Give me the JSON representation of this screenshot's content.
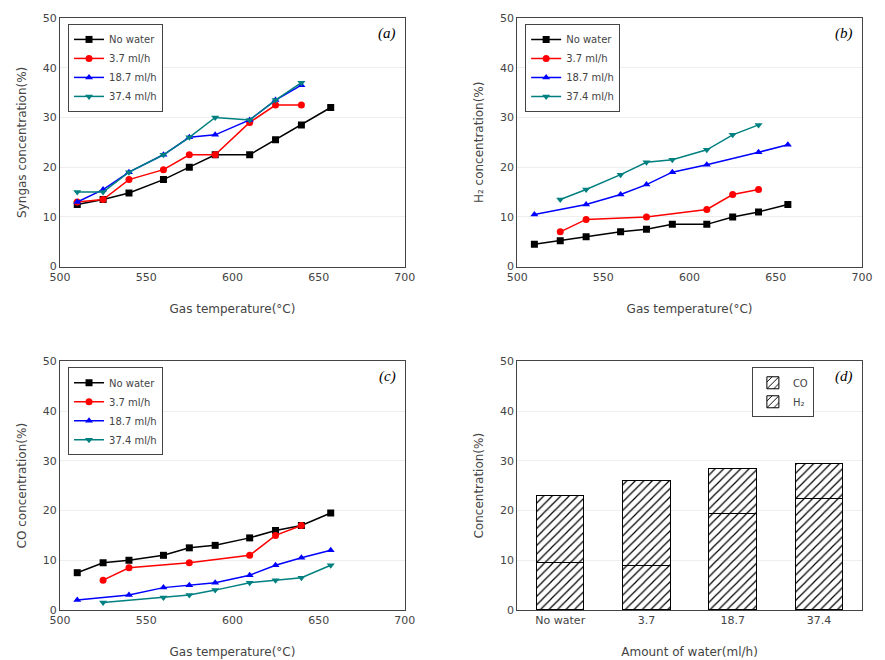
{
  "chart_data": [
    {
      "type": "line",
      "xlabel": "Gas temperature(°C)",
      "ylabel": "Syngas concentration(%)",
      "annotations": [
        "(a)"
      ],
      "x": [
        510,
        525,
        540,
        560,
        575,
        590,
        610,
        625,
        640,
        657
      ],
      "series": [
        {
          "name": "No water",
          "color": "#000000",
          "marker": "square",
          "values": [
            12.5,
            13.5,
            14.8,
            17.5,
            20.0,
            22.5,
            22.5,
            25.5,
            28.5,
            32.0
          ]
        },
        {
          "name": "3.7 ml/h",
          "color": "#ff0000",
          "marker": "circle",
          "values": [
            13.0,
            13.5,
            17.5,
            19.5,
            22.5,
            22.5,
            29.0,
            32.5,
            32.5,
            null
          ]
        },
        {
          "name": "18.7 ml/h",
          "color": "#0000ff",
          "marker": "triangle-up",
          "values": [
            13.0,
            15.5,
            19.0,
            22.5,
            26.0,
            26.5,
            29.5,
            33.5,
            36.5,
            null
          ]
        },
        {
          "name": "37.4 ml/h",
          "color": "#008080",
          "marker": "triangle-down",
          "values": [
            15.0,
            15.0,
            19.0,
            22.5,
            26.0,
            30.0,
            29.5,
            33.5,
            37.0,
            null
          ]
        }
      ],
      "xlim": [
        500,
        700
      ],
      "xticks": [
        500,
        550,
        600,
        650,
        700
      ],
      "ylim": [
        0,
        50
      ],
      "yticks": [
        0,
        10,
        20,
        30,
        40,
        50
      ],
      "grid": true,
      "legend": "upper left"
    },
    {
      "type": "line",
      "xlabel": "Gas temperature(°C)",
      "ylabel": "H₂ concentration(%)",
      "annotations": [
        "(b)"
      ],
      "x": [
        510,
        525,
        540,
        560,
        575,
        590,
        610,
        625,
        640,
        657
      ],
      "series": [
        {
          "name": "No water",
          "color": "#000000",
          "marker": "square",
          "values": [
            4.5,
            5.2,
            6.0,
            7.0,
            7.5,
            8.5,
            8.5,
            10.0,
            11.0,
            12.5
          ]
        },
        {
          "name": "3.7 ml/h",
          "color": "#ff0000",
          "marker": "circle",
          "values": [
            null,
            7.0,
            9.5,
            null,
            10.0,
            null,
            11.5,
            14.5,
            15.5,
            null
          ]
        },
        {
          "name": "18.7 ml/h",
          "color": "#0000ff",
          "marker": "triangle-up",
          "values": [
            10.5,
            null,
            12.5,
            14.5,
            16.5,
            19.0,
            20.5,
            null,
            23.0,
            24.5
          ]
        },
        {
          "name": "37.4 ml/h",
          "color": "#008080",
          "marker": "triangle-down",
          "values": [
            null,
            13.5,
            15.5,
            18.5,
            21.0,
            21.5,
            23.5,
            26.5,
            28.5,
            null
          ]
        }
      ],
      "xlim": [
        500,
        700
      ],
      "xticks": [
        500,
        550,
        600,
        650,
        700
      ],
      "ylim": [
        0,
        50
      ],
      "yticks": [
        0,
        10,
        20,
        30,
        40,
        50
      ],
      "grid": true,
      "legend": "upper left"
    },
    {
      "type": "line",
      "xlabel": "Gas temperature(°C)",
      "ylabel": "CO concentration(%)",
      "annotations": [
        "(c)"
      ],
      "x": [
        510,
        525,
        540,
        560,
        575,
        590,
        610,
        625,
        640,
        657
      ],
      "series": [
        {
          "name": "No water",
          "color": "#000000",
          "marker": "square",
          "values": [
            7.5,
            9.5,
            10.0,
            11.0,
            12.5,
            13.0,
            14.5,
            16.0,
            17.0,
            19.5
          ]
        },
        {
          "name": "3.7 ml/h",
          "color": "#ff0000",
          "marker": "circle",
          "values": [
            null,
            6.0,
            8.5,
            null,
            9.5,
            null,
            11.0,
            15.0,
            17.0,
            null
          ]
        },
        {
          "name": "18.7 ml/h",
          "color": "#0000ff",
          "marker": "triangle-up",
          "values": [
            2.0,
            null,
            3.0,
            4.5,
            5.0,
            5.5,
            7.0,
            9.0,
            10.5,
            12.0
          ]
        },
        {
          "name": "37.4 ml/h",
          "color": "#008080",
          "marker": "triangle-down",
          "values": [
            null,
            1.5,
            null,
            2.5,
            3.0,
            4.0,
            5.5,
            6.0,
            6.5,
            9.0
          ]
        }
      ],
      "xlim": [
        500,
        700
      ],
      "xticks": [
        500,
        550,
        600,
        650,
        700
      ],
      "ylim": [
        0,
        50
      ],
      "yticks": [
        0,
        10,
        20,
        30,
        40,
        50
      ],
      "grid": true,
      "legend": "upper left"
    },
    {
      "type": "bar",
      "stacked": true,
      "xlabel": "Amount of water(ml/h)",
      "ylabel": "Concentration(%)",
      "annotations": [
        "(d)"
      ],
      "categories": [
        "No water",
        "3.7",
        "18.7",
        "37.4"
      ],
      "series": [
        {
          "name": "H₂",
          "color": "#0000cc",
          "values": [
            9.5,
            9.0,
            19.5,
            22.5
          ]
        },
        {
          "name": "CO",
          "color": "#cc0000",
          "values": [
            13.5,
            17.0,
            9.0,
            7.0
          ]
        }
      ],
      "ylim": [
        0,
        50
      ],
      "yticks": [
        0,
        10,
        20,
        30,
        40,
        50
      ],
      "grid": true,
      "legend": "upper right"
    }
  ]
}
